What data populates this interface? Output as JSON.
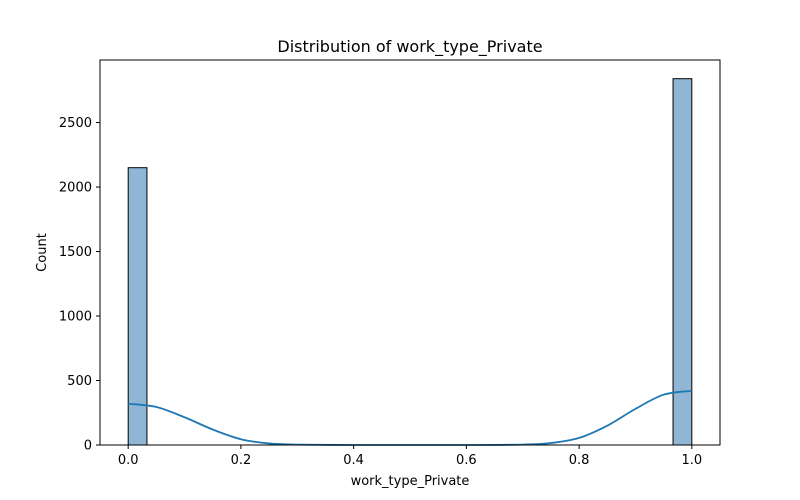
{
  "chart_data": {
    "type": "bar",
    "title": "Distribution of work_type_Private",
    "xlabel": "work_type_Private",
    "ylabel": "Count",
    "xlim": [
      -0.05,
      1.05
    ],
    "ylim": [
      0,
      2985
    ],
    "xticks": [
      0.0,
      0.2,
      0.4,
      0.6,
      0.8,
      1.0
    ],
    "xtick_labels": [
      "0.0",
      "0.2",
      "0.4",
      "0.6",
      "0.8",
      "1.0"
    ],
    "yticks": [
      0,
      500,
      1000,
      1500,
      2000,
      2500
    ],
    "ytick_labels": [
      "0",
      "500",
      "1000",
      "1500",
      "2000",
      "2500"
    ],
    "grid": false,
    "bins": [
      {
        "x0": 0.0,
        "x1": 0.0333,
        "value": 2150
      },
      {
        "x0": 0.9667,
        "x1": 1.0,
        "value": 2840
      }
    ],
    "kde": {
      "x": [
        0.0,
        0.05,
        0.1,
        0.15,
        0.2,
        0.25,
        0.3,
        0.4,
        0.5,
        0.6,
        0.7,
        0.75,
        0.8,
        0.85,
        0.9,
        0.95,
        1.0
      ],
      "y": [
        320,
        295,
        215,
        120,
        45,
        12,
        3,
        0,
        0,
        0,
        3,
        15,
        55,
        150,
        280,
        390,
        420
      ]
    },
    "colors": {
      "bar_fill": "#8fb6d5",
      "bar_edge": "#000000",
      "kde_line": "#1f77b4"
    }
  }
}
